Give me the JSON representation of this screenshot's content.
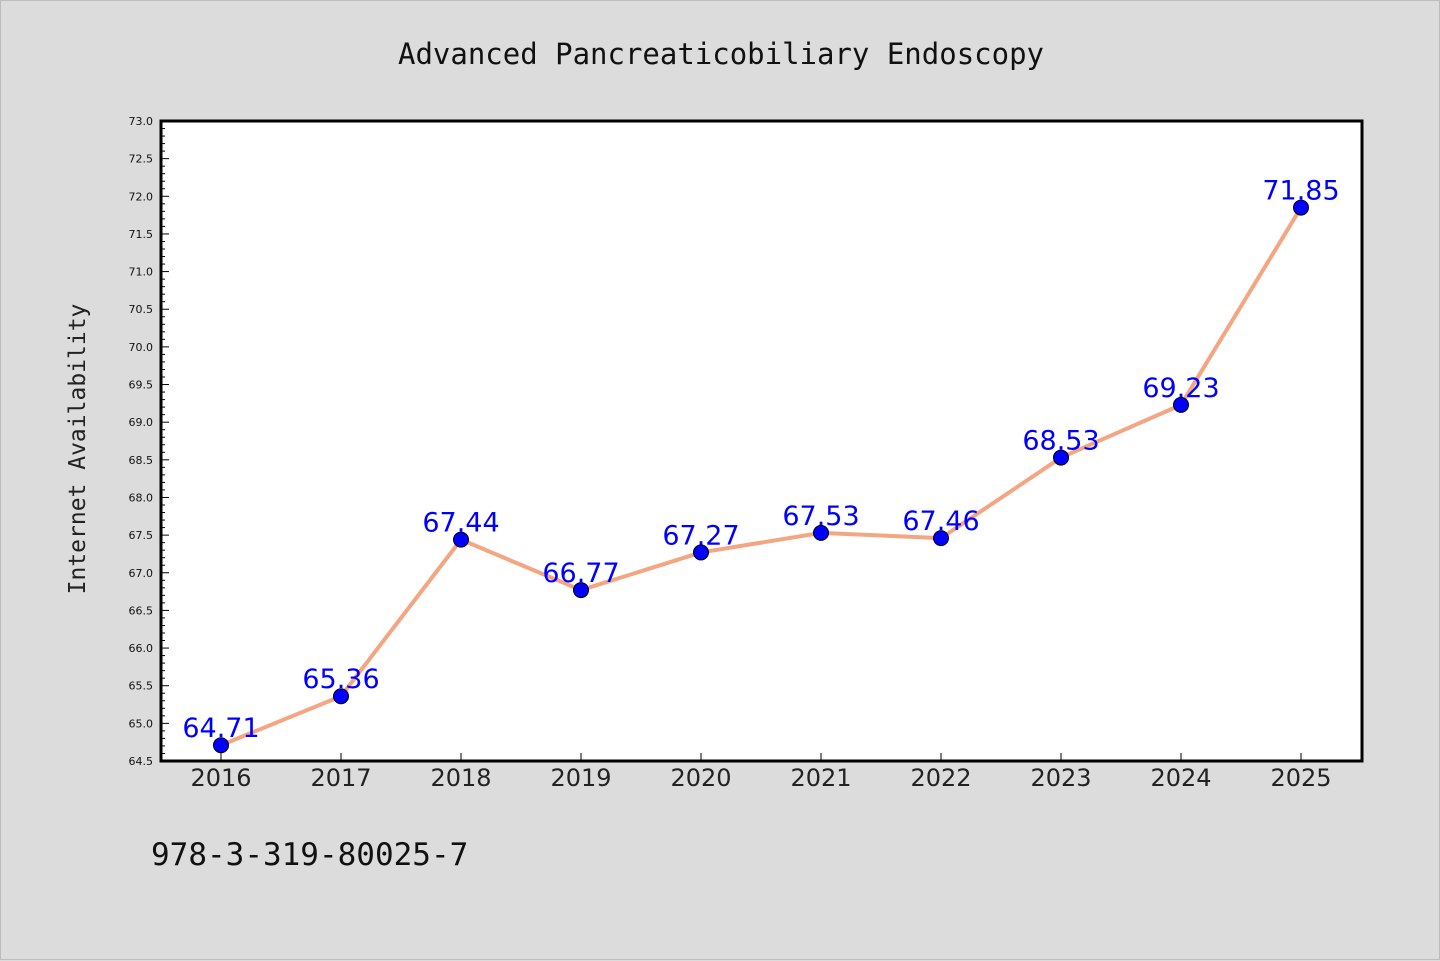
{
  "chart_data": {
    "type": "line",
    "title": "Advanced Pancreaticobiliary Endoscopy",
    "xlabel": "",
    "ylabel": "Internet Availability",
    "x": [
      "2016",
      "2017",
      "2018",
      "2019",
      "2020",
      "2021",
      "2022",
      "2023",
      "2024",
      "2025"
    ],
    "series": [
      {
        "values": [
          64.71,
          65.36,
          67.44,
          66.77,
          67.27,
          67.53,
          67.46,
          68.53,
          69.23,
          71.85
        ],
        "data_labels": [
          "64.71",
          "65.36",
          "67.44",
          "66.77",
          "67.27",
          "67.53",
          "67.46",
          "68.53",
          "69.23",
          "71.85"
        ],
        "line_color": "#f4a582",
        "marker_color": "#0000ff"
      }
    ],
    "ylim": [
      64.5,
      73.0
    ],
    "yticks": [
      "64.5",
      "65.0",
      "65.5",
      "66.0",
      "66.5",
      "67.0",
      "67.5",
      "68.0",
      "68.5",
      "69.0",
      "69.5",
      "70.0",
      "70.5",
      "71.0",
      "71.5",
      "72.0",
      "72.5",
      "73.0"
    ],
    "grid": false,
    "legend": "none"
  },
  "footer": {
    "isbn": "978-3-319-80025-7"
  },
  "colors": {
    "background": "#dcdcdc",
    "plot_background": "#ffffff",
    "data_label": "#0000ff"
  }
}
